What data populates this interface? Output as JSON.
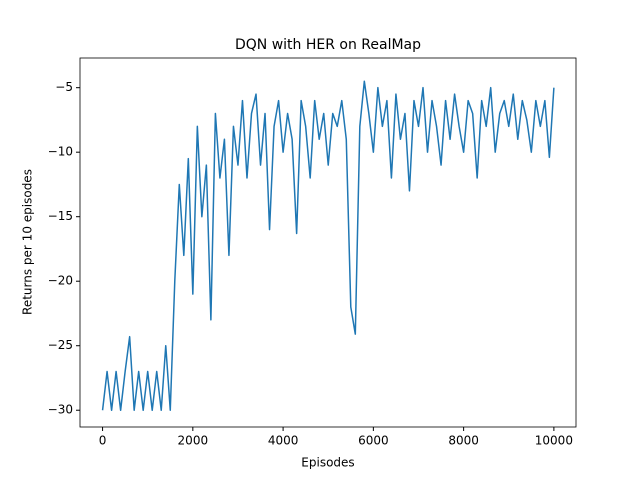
{
  "chart_data": {
    "type": "line",
    "title": "DQN with HER on RealMap",
    "x_label": "Episodes",
    "y_label": "Returns per 10 episodes",
    "x": [
      0,
      100,
      200,
      300,
      400,
      500,
      600,
      700,
      800,
      900,
      1000,
      1100,
      1200,
      1300,
      1400,
      1500,
      1600,
      1700,
      1800,
      1900,
      2000,
      2100,
      2200,
      2300,
      2400,
      2500,
      2600,
      2700,
      2800,
      2900,
      3000,
      3100,
      3200,
      3300,
      3400,
      3500,
      3600,
      3700,
      3800,
      3900,
      4000,
      4100,
      4200,
      4300,
      4400,
      4500,
      4600,
      4700,
      4800,
      4900,
      5000,
      5100,
      5200,
      5300,
      5400,
      5500,
      5600,
      5700,
      5800,
      5900,
      6000,
      6100,
      6200,
      6300,
      6400,
      6500,
      6600,
      6700,
      6800,
      6900,
      7000,
      7100,
      7200,
      7300,
      7400,
      7500,
      7600,
      7700,
      7800,
      7900,
      8000,
      8100,
      8200,
      8300,
      8400,
      8500,
      8600,
      8700,
      8800,
      8900,
      9000,
      9100,
      9200,
      9300,
      9400,
      9500,
      9600,
      9700,
      9800,
      9900,
      10000
    ],
    "series": [
      {
        "name": "returns",
        "color": "#1f77b4",
        "values": [
          -30,
          -27,
          -30,
          -27,
          -30,
          -27,
          -24.3,
          -30,
          -27,
          -30,
          -27,
          -30,
          -27,
          -30,
          -25,
          -30,
          -20,
          -12.5,
          -18,
          -10.5,
          -21,
          -8,
          -15,
          -11,
          -23,
          -7,
          -12,
          -9,
          -18,
          -8,
          -11,
          -6,
          -12,
          -7,
          -5.5,
          -11,
          -7,
          -16,
          -8,
          -6,
          -10,
          -7,
          -9,
          -16.3,
          -6,
          -8,
          -12,
          -6,
          -9,
          -7,
          -11,
          -7,
          -8,
          -6,
          -9,
          -22,
          -24.1,
          -8,
          -4.5,
          -7,
          -10,
          -5,
          -8,
          -6,
          -12,
          -5.5,
          -9,
          -7,
          -13,
          -6,
          -8,
          -5,
          -10,
          -6,
          -8,
          -11,
          -6,
          -9,
          -5.5,
          -8,
          -10,
          -6,
          -7,
          -12,
          -6,
          -8,
          -5,
          -10,
          -7,
          -6,
          -8,
          -5.5,
          -9,
          -6,
          -7.5,
          -10,
          -6,
          -8,
          -6,
          -10.4,
          -5
        ]
      }
    ],
    "xlim": [
      -500,
      10490
    ],
    "ylim": [
      -31.3,
      -2.7
    ],
    "xticks": [
      0,
      2000,
      4000,
      6000,
      8000,
      10000
    ],
    "yticks": [
      {
        "value": -30,
        "label": "−30"
      },
      {
        "value": -25,
        "label": "−25"
      },
      {
        "value": -20,
        "label": "−20"
      },
      {
        "value": -15,
        "label": "−15"
      },
      {
        "value": -10,
        "label": "−10"
      },
      {
        "value": -5,
        "label": "−5"
      }
    ]
  }
}
